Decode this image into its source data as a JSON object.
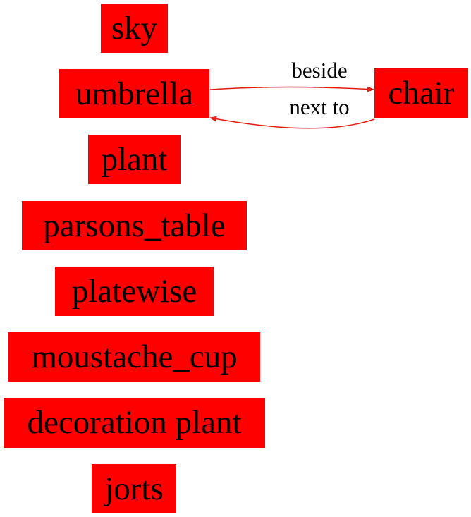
{
  "nodes": {
    "sky": "sky",
    "umbrella": "umbrella",
    "chair": "chair",
    "plant": "plant",
    "parsons_table": "parsons_table",
    "platewise": "platewise",
    "moustache_cup": "moustache_cup",
    "decoration_plant": "decoration plant",
    "jorts": "jorts"
  },
  "edges": [
    {
      "from": "umbrella",
      "to": "chair",
      "label": "beside"
    },
    {
      "from": "chair",
      "to": "umbrella",
      "label": "next to"
    }
  ],
  "colors": {
    "node_fill": "#ff0000",
    "edge": "#e8190f",
    "text": "#000000"
  }
}
